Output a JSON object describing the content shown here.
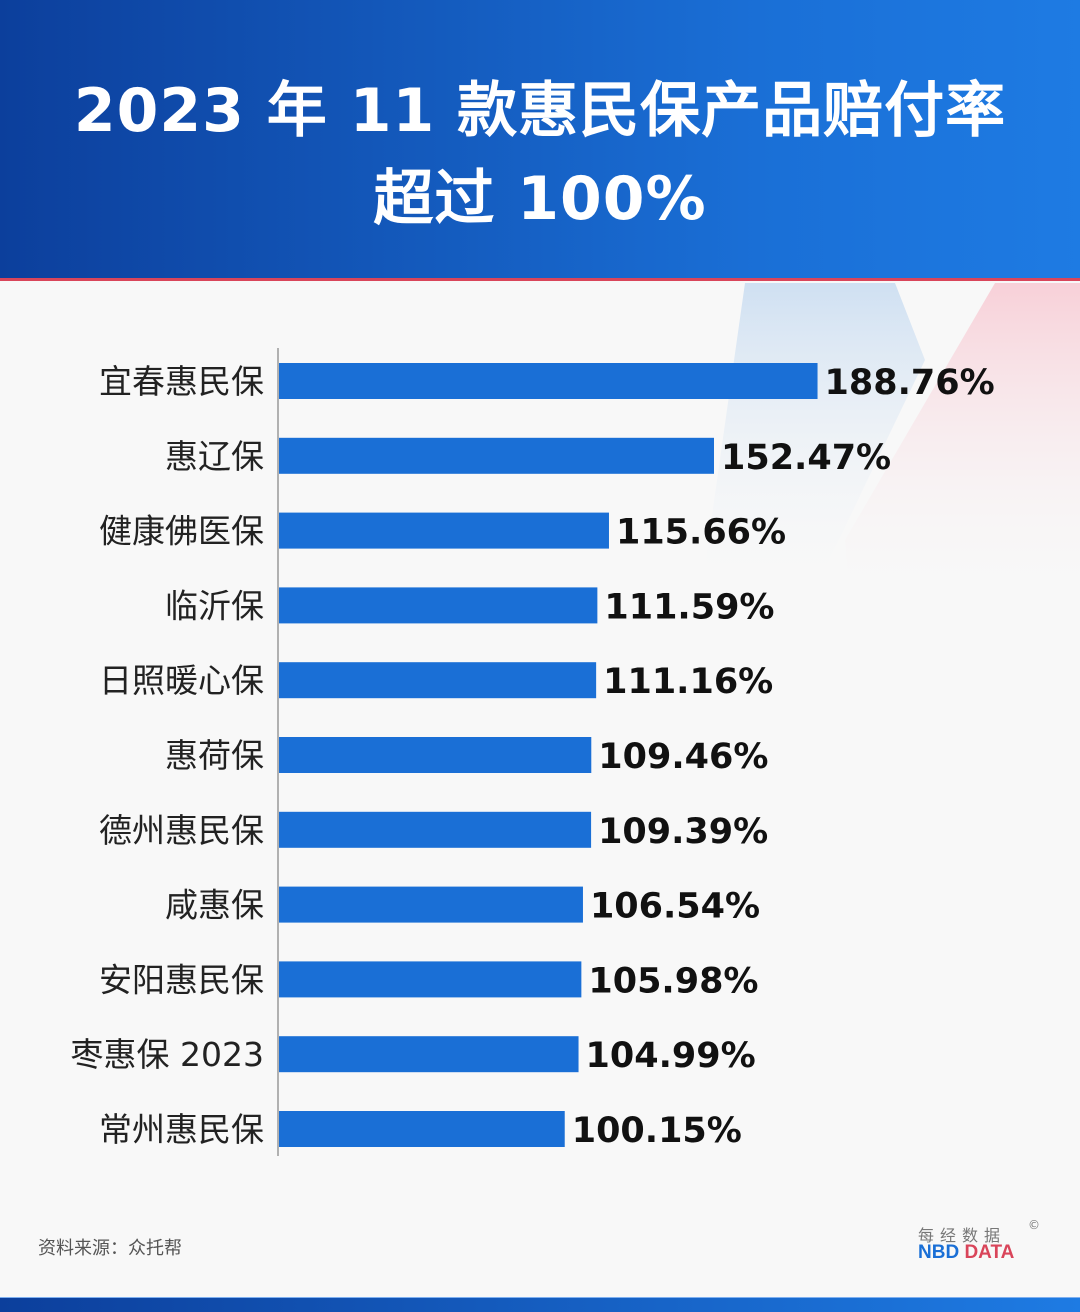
{
  "header": {
    "title_line1": "2023 年 11 款惠民保产品赔付率",
    "title_line2": "超过 100%"
  },
  "colors": {
    "bar": "#1a6fd6",
    "header": "#0c3f9c",
    "accent_red": "#d9455a"
  },
  "chart_data": {
    "type": "bar",
    "orientation": "horizontal",
    "title": "2023 年 11 款惠民保产品赔付率超过 100%",
    "categories": [
      "宜春惠民保",
      "惠辽保",
      "健康佛医保",
      "临沂保",
      "日照暖心保",
      "惠荷保",
      "德州惠民保",
      "咸惠保",
      "安阳惠民保",
      "枣惠保 2023",
      "常州惠民保"
    ],
    "values": [
      188.76,
      152.47,
      115.66,
      111.59,
      111.16,
      109.46,
      109.39,
      106.54,
      105.98,
      104.99,
      100.15
    ],
    "labels": [
      "188.76%",
      "152.47%",
      "115.66%",
      "111.59%",
      "111.16%",
      "109.46%",
      "109.39%",
      "106.54%",
      "105.98%",
      "104.99%",
      "100.15%"
    ],
    "xlim": [
      0,
      200
    ],
    "grid": false,
    "unit": "%"
  },
  "footer": {
    "source": "资料来源：众托帮",
    "logo_cn": "每经数据",
    "logo_nbd": "NBD",
    "logo_data": "DATA",
    "logo_mark": "©"
  }
}
